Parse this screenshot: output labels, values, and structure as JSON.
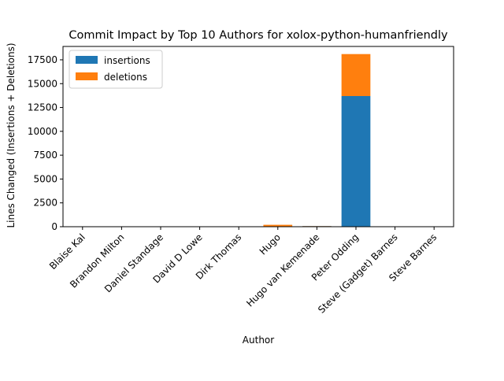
{
  "chart_data": {
    "type": "bar",
    "stacked": true,
    "title": "Commit Impact by Top 10 Authors for xolox-python-humanfriendly",
    "xlabel": "Author",
    "ylabel": "Lines Changed (Insertions + Deletions)",
    "categories": [
      "Blaise Kal",
      "Brandon Milton",
      "Daniel Standage",
      "David D Lowe",
      "Dirk Thomas",
      "Hugo",
      "Hugo van Kemenade",
      "Peter Odding",
      "Steve (Gadget) Barnes",
      "Steve Barnes"
    ],
    "series": [
      {
        "name": "insertions",
        "color": "#1f77b4",
        "values": [
          2,
          3,
          4,
          3,
          2,
          40,
          60,
          13700,
          2,
          3
        ]
      },
      {
        "name": "deletions",
        "color": "#ff7f0e",
        "values": [
          1,
          1,
          2,
          1,
          1,
          160,
          15,
          4400,
          1,
          1
        ]
      }
    ],
    "ylim": [
      0,
      18900
    ],
    "yticks": [
      0,
      2500,
      5000,
      7500,
      10000,
      12500,
      15000,
      17500
    ],
    "ytick_labels": [
      "0",
      "2500",
      "5000",
      "7500",
      "10000",
      "12500",
      "15000",
      "17500"
    ],
    "grid": false,
    "legend_position": "upper-left"
  }
}
